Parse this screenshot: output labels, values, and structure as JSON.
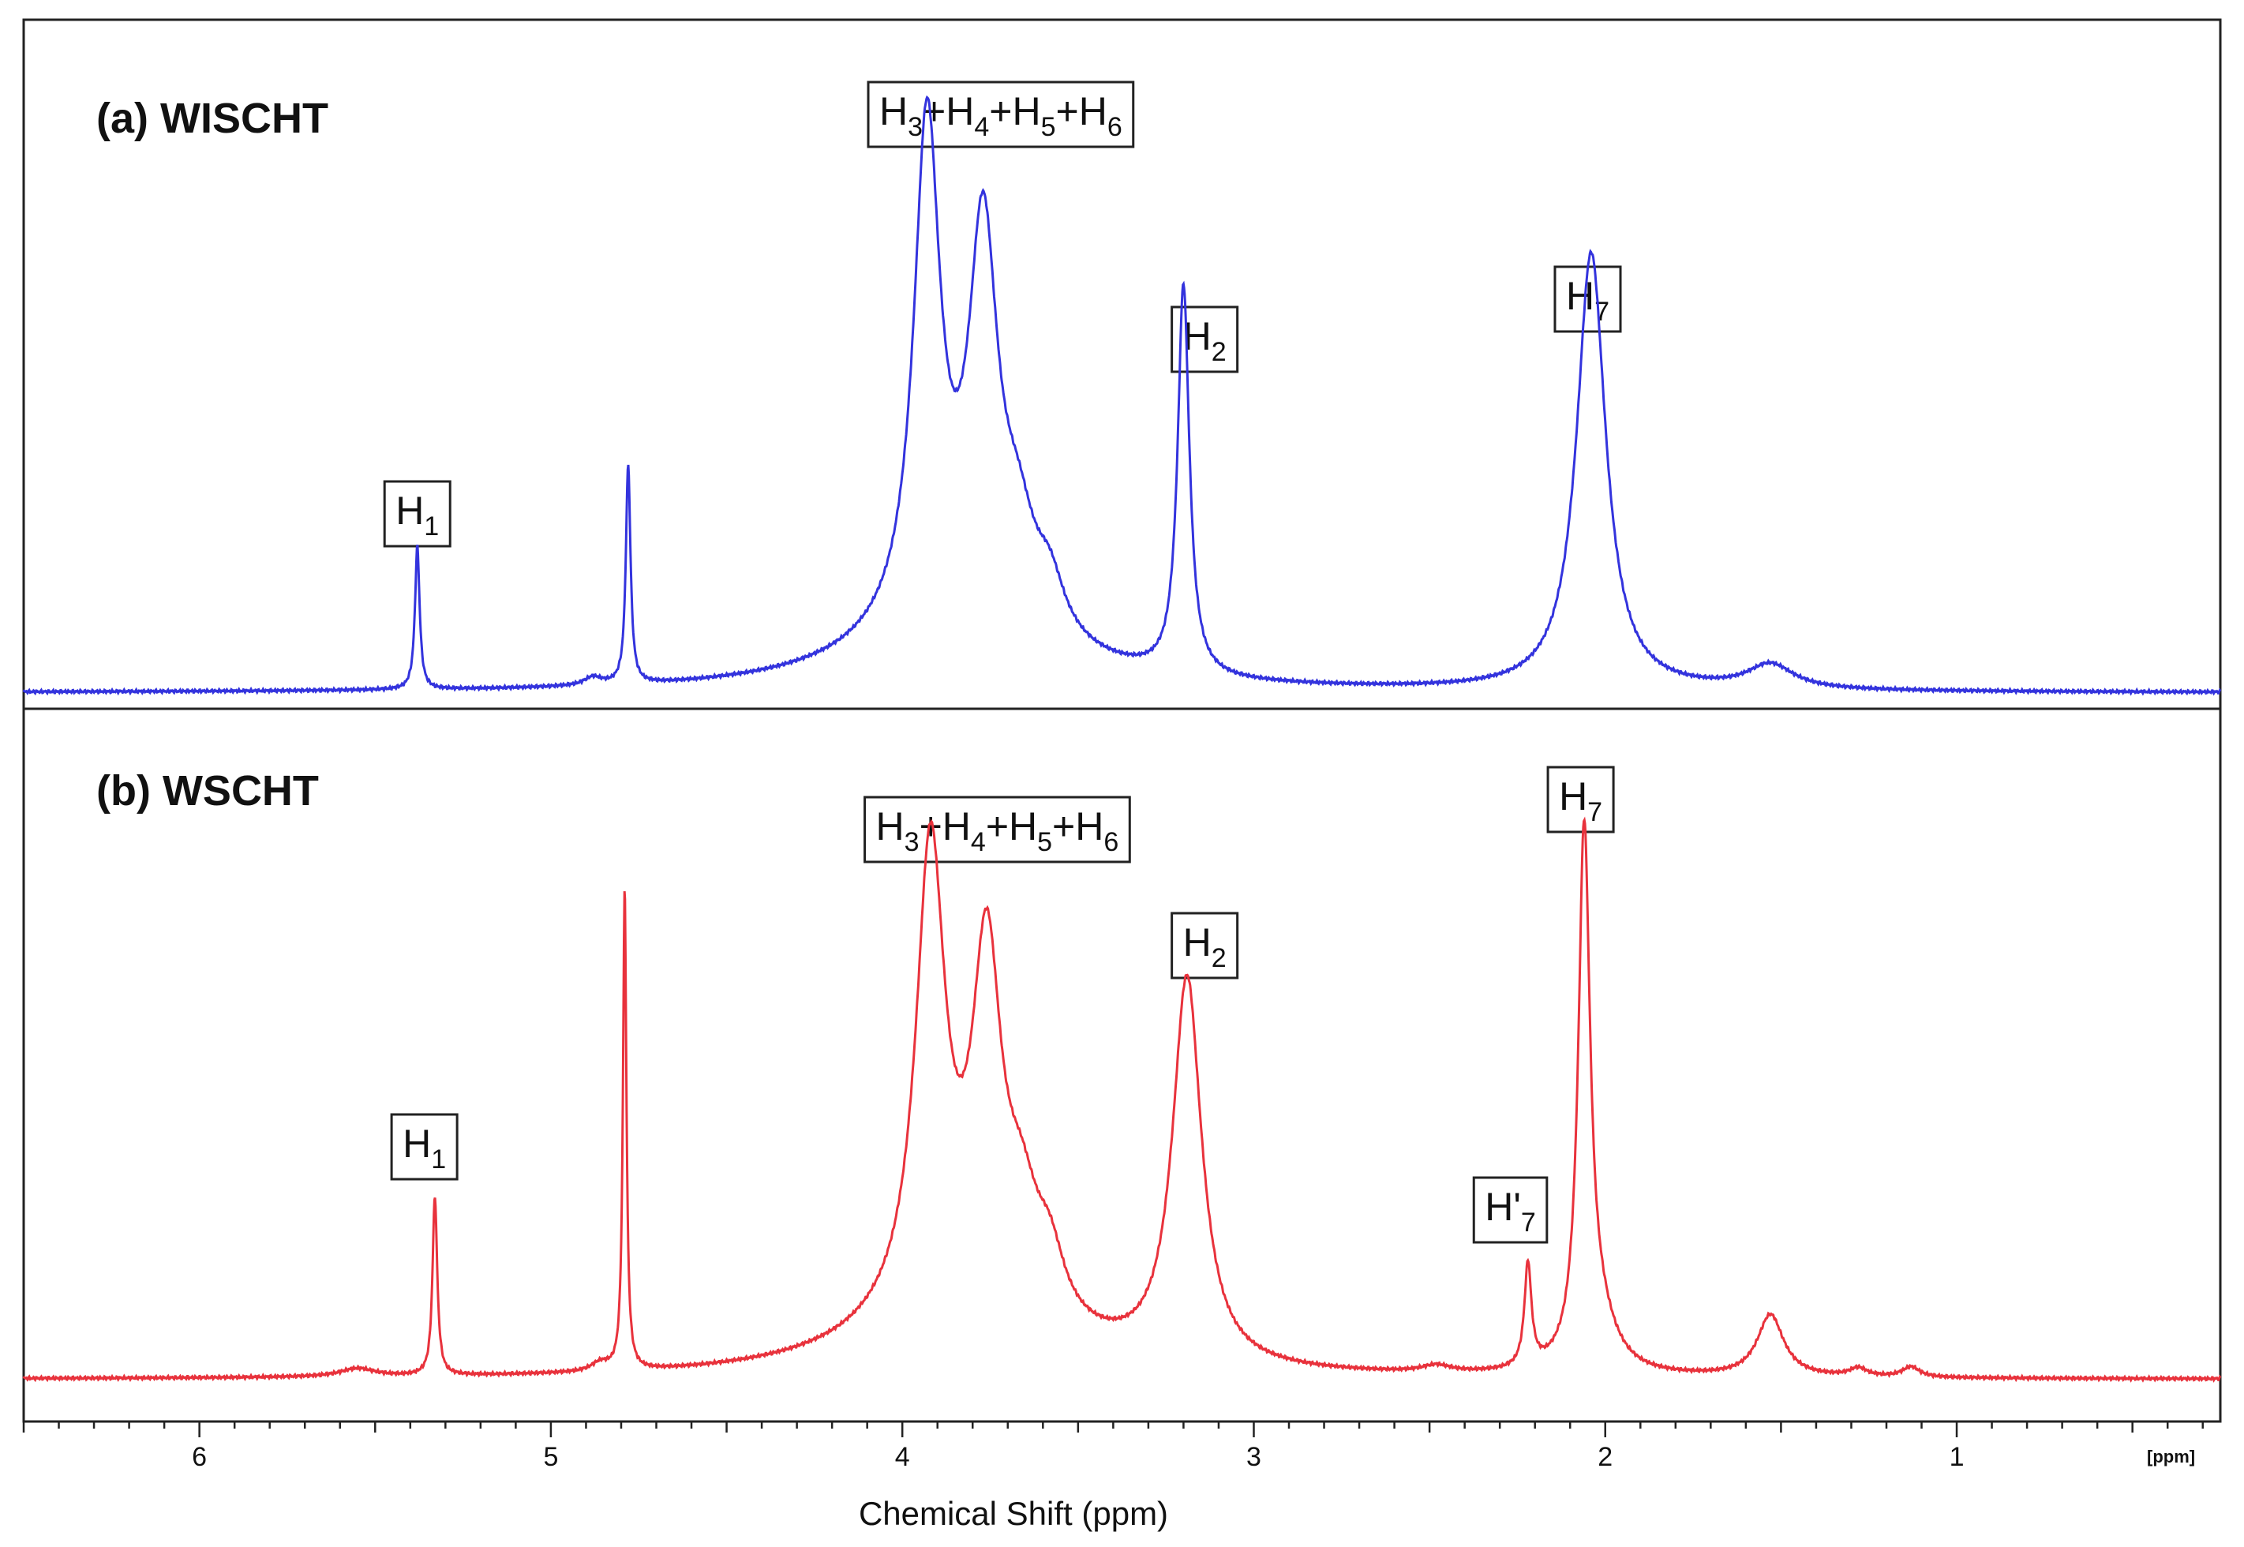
{
  "chart_data": {
    "type": "line",
    "xlabel": "Chemical Shift (ppm)",
    "x_unit_label": "[ppm]",
    "xlim": [
      6.5,
      0.25
    ],
    "x_reversed": true,
    "x_major_ticks": [
      6,
      5,
      4,
      3,
      2,
      1
    ],
    "grid": false,
    "panels": [
      {
        "title": "(a) WISCHT",
        "color": "#3333dd",
        "baseline": 0.012,
        "peaks": [
          {
            "ppm": 5.38,
            "height": 0.21,
            "width": 0.008
          },
          {
            "ppm": 4.88,
            "height": 0.012,
            "width": 0.03
          },
          {
            "ppm": 4.78,
            "height": 0.32,
            "width": 0.008
          },
          {
            "ppm": 3.93,
            "height": 0.72,
            "width": 0.045
          },
          {
            "ppm": 3.77,
            "height": 0.55,
            "width": 0.05
          },
          {
            "ppm": 3.67,
            "height": 0.12,
            "width": 0.06
          },
          {
            "ppm": 3.58,
            "height": 0.07,
            "width": 0.05
          },
          {
            "ppm": 3.85,
            "height": 0.1,
            "width": 0.3
          },
          {
            "ppm": 3.2,
            "height": 0.57,
            "width": 0.02
          },
          {
            "ppm": 2.04,
            "height": 0.64,
            "width": 0.05
          },
          {
            "ppm": 1.53,
            "height": 0.036,
            "width": 0.08
          }
        ],
        "annotations": [
          {
            "ppm": 5.38,
            "main": "H",
            "sub": [
              "1"
            ],
            "text": "H1"
          },
          {
            "ppm": 3.72,
            "main": "H",
            "sub": [
              "3",
              "4",
              "5",
              "6"
            ],
            "text": "H3+H4+H5+H6"
          },
          {
            "ppm": 3.14,
            "main": "H",
            "sub": [
              "2"
            ],
            "text": "H2"
          },
          {
            "ppm": 2.05,
            "main": "H",
            "sub": [
              "7"
            ],
            "text": "H7"
          }
        ]
      },
      {
        "title": "(b) WSCHT",
        "color": "#e8323c",
        "baseline": 0.012,
        "peaks": [
          {
            "ppm": 5.55,
            "height": 0.012,
            "width": 0.06
          },
          {
            "ppm": 5.33,
            "height": 0.26,
            "width": 0.008
          },
          {
            "ppm": 4.86,
            "height": 0.012,
            "width": 0.03
          },
          {
            "ppm": 4.79,
            "height": 0.7,
            "width": 0.006
          },
          {
            "ppm": 3.92,
            "height": 0.66,
            "width": 0.05
          },
          {
            "ppm": 3.76,
            "height": 0.49,
            "width": 0.05
          },
          {
            "ppm": 3.66,
            "height": 0.13,
            "width": 0.06
          },
          {
            "ppm": 3.58,
            "height": 0.08,
            "width": 0.05
          },
          {
            "ppm": 3.85,
            "height": 0.1,
            "width": 0.3
          },
          {
            "ppm": 3.19,
            "height": 0.56,
            "width": 0.05
          },
          {
            "ppm": 2.48,
            "height": 0.01,
            "width": 0.05
          },
          {
            "ppm": 2.22,
            "height": 0.15,
            "width": 0.012
          },
          {
            "ppm": 2.06,
            "height": 0.76,
            "width": 0.02
          },
          {
            "ppm": 2.02,
            "height": 0.07,
            "width": 0.06
          },
          {
            "ppm": 1.53,
            "height": 0.09,
            "width": 0.045
          },
          {
            "ppm": 1.28,
            "height": 0.012,
            "width": 0.03
          },
          {
            "ppm": 1.13,
            "height": 0.015,
            "width": 0.03
          }
        ],
        "annotations": [
          {
            "ppm": 5.36,
            "main": "H",
            "sub": [
              "1"
            ],
            "text": "H1"
          },
          {
            "ppm": 3.73,
            "main": "H",
            "sub": [
              "3",
              "4",
              "5",
              "6"
            ],
            "text": "H3+H4+H5+H6"
          },
          {
            "ppm": 3.14,
            "main": "H",
            "sub": [
              "2"
            ],
            "text": "H2"
          },
          {
            "ppm": 2.27,
            "main": "H'",
            "sub": [
              "7"
            ],
            "text": "H'7"
          },
          {
            "ppm": 2.07,
            "main": "H",
            "sub": [
              "7"
            ],
            "text": "H7"
          }
        ]
      }
    ]
  }
}
